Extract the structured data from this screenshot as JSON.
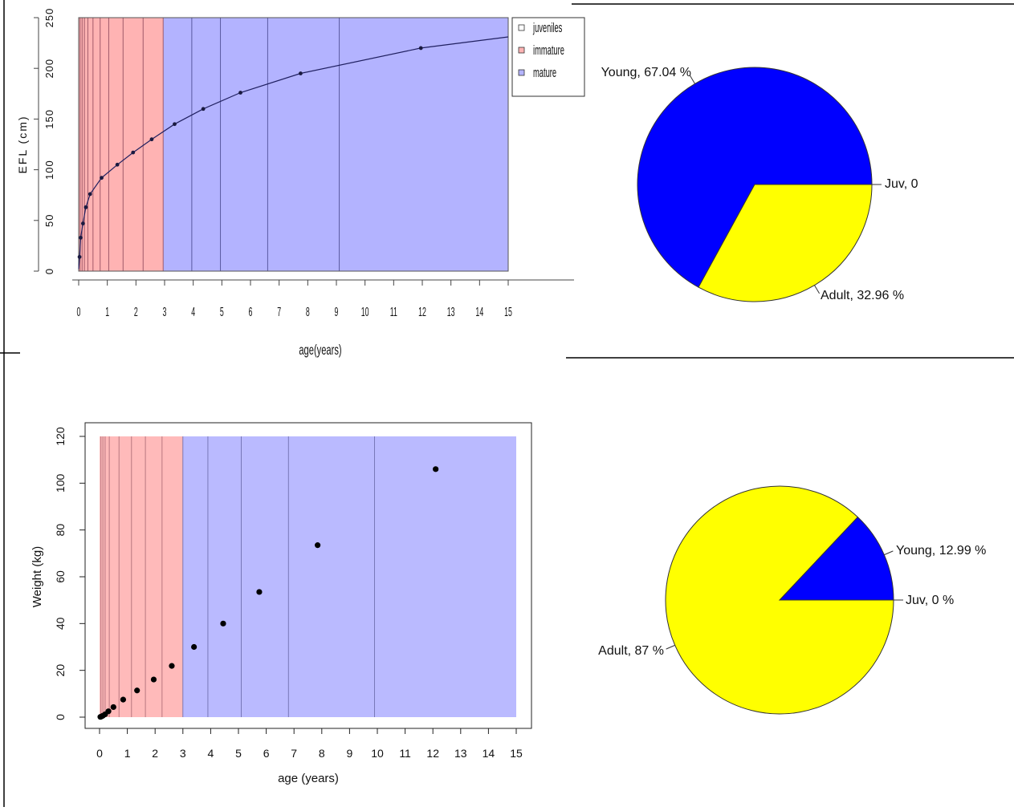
{
  "chart_data": [
    {
      "type": "line",
      "xlabel": "age(years)",
      "ylabel": "EFL (cm)",
      "xlim": [
        0,
        15
      ],
      "ylim": [
        0,
        250
      ],
      "x_ticks": [
        "0",
        "1",
        "2",
        "3",
        "4",
        "5",
        "6",
        "7",
        "8",
        "9",
        "10",
        "11",
        "12",
        "13",
        "14",
        "15"
      ],
      "y_ticks": [
        "0",
        "50",
        "100",
        "150",
        "200",
        "250"
      ],
      "x": [
        0.03,
        0.07,
        0.15,
        0.25,
        0.4,
        0.8,
        1.35,
        1.9,
        2.55,
        3.35,
        4.35,
        5.65,
        7.75,
        11.95,
        15
      ],
      "values": [
        14,
        33,
        47,
        63,
        76,
        92,
        105,
        117,
        130,
        145,
        160,
        176,
        195,
        220,
        231
      ],
      "markers_x": [
        0.03,
        0.07,
        0.15,
        0.25,
        0.4,
        0.8,
        1.35,
        1.9,
        2.55,
        3.35,
        4.35,
        5.65,
        7.75,
        11.95
      ],
      "stage_bands": [
        {
          "stage": "immature",
          "from": 0,
          "to": 2.95
        },
        {
          "stage": "mature",
          "from": 2.95,
          "to": 15
        }
      ],
      "vlines": [
        0.05,
        0.12,
        0.2,
        0.32,
        0.5,
        0.75,
        1.05,
        1.55,
        2.25,
        2.95,
        3.95,
        4.95,
        6.6,
        9.1
      ],
      "legend": {
        "position": "top-right",
        "entries": [
          {
            "label": "juveniles",
            "color": "#ffffff"
          },
          {
            "label": "immature",
            "color": "#ffb3b3"
          },
          {
            "label": "mature",
            "color": "#b3b3ff"
          }
        ]
      },
      "grid": false
    },
    {
      "type": "pie",
      "slices": [
        {
          "label": "Juv, 0",
          "value": 0,
          "color": "#ffffff"
        },
        {
          "label": "Young, 67.04 %",
          "value": 67.04,
          "color": "#0000ff"
        },
        {
          "label": "Adult, 32.96 %",
          "value": 32.96,
          "color": "#ffff00"
        }
      ]
    },
    {
      "type": "scatter",
      "xlabel": "age (years)",
      "ylabel": "Weight (kg)",
      "xlim": [
        0,
        15
      ],
      "ylim": [
        0,
        120
      ],
      "x_ticks": [
        "0",
        "1",
        "2",
        "3",
        "4",
        "5",
        "6",
        "7",
        "8",
        "9",
        "10",
        "11",
        "12",
        "13",
        "14",
        "15"
      ],
      "y_ticks": [
        "0",
        "20",
        "40",
        "60",
        "80",
        "100",
        "120"
      ],
      "x": [
        0.03,
        0.07,
        0.12,
        0.2,
        0.32,
        0.5,
        0.85,
        1.35,
        1.95,
        2.6,
        3.4,
        4.45,
        5.75,
        7.85,
        12.1
      ],
      "values": [
        0.1,
        0.3,
        0.6,
        1.2,
        2.5,
        4.3,
        7.5,
        11.4,
        16.1,
        21.9,
        30,
        40,
        53.5,
        73.5,
        106
      ],
      "stage_bands": [
        {
          "stage": "immature",
          "from": 0,
          "to": 3.0
        },
        {
          "stage": "mature",
          "from": 3.0,
          "to": 15
        }
      ],
      "vlines": [
        0.05,
        0.12,
        0.2,
        0.35,
        0.7,
        1.15,
        1.65,
        2.25,
        3.0,
        3.9,
        5.1,
        6.8,
        9.9
      ],
      "grid": false
    },
    {
      "type": "pie",
      "slices": [
        {
          "label": "Juv, 0 %",
          "value": 0,
          "color": "#ffffff"
        },
        {
          "label": "Young, 12.99 %",
          "value": 12.99,
          "color": "#0000ff"
        },
        {
          "label": "Adult, 87 %",
          "value": 87,
          "color": "#ffff00"
        }
      ]
    }
  ]
}
